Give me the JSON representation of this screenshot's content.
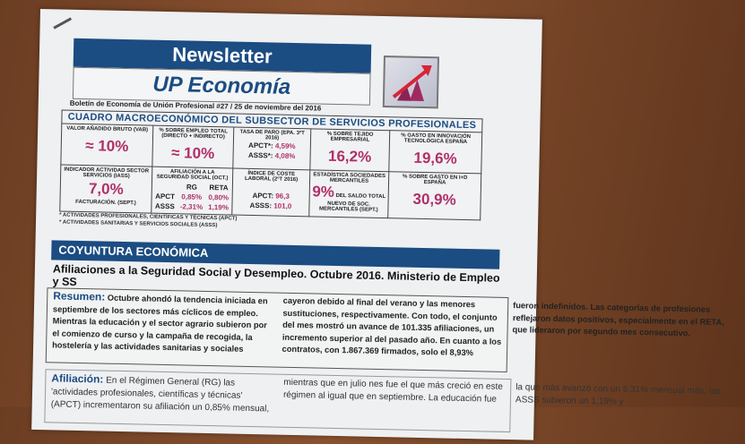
{
  "header": {
    "title": "Newsletter",
    "subtitle": "UP Economía",
    "bulletin": "Boletín de Economía de Unión Profesional #27 / 25 de noviembre del 2016"
  },
  "table": {
    "title": "CUADRO MACROECONÓMICO DEL SUBSECTOR DE SERVICIOS PROFESIONALES",
    "vab": {
      "label": "VALOR AÑADIDO BRUTO (VAB)",
      "value": "≈ 10%"
    },
    "empleo": {
      "label": "% SOBRE EMPLEO TOTAL (DIRECTO + INDIRECTO)",
      "value": "≈ 10%"
    },
    "paro": {
      "label": "TASA DE PARO (EPA. 3ºT 2016)",
      "apct_label": "APCT*:",
      "apct": "4,59%",
      "asss_label": "ASSS*:",
      "asss": "4,08%"
    },
    "tejido": {
      "label": "% SOBRE TEJIDO EMPRESARIAL",
      "value": "16,2%"
    },
    "innov": {
      "label": "% GASTO EN INNOVACIÓN TECNOLÓGICA ESPAÑA",
      "value": "19,6%"
    },
    "iass": {
      "label": "INDICADOR ACTIVIDAD SECTOR SERVICIOS (IASS)",
      "value": "7,0%",
      "note": "FACTURACIÓN. (SEPT.)"
    },
    "afil": {
      "label": "AFILIACIÓN A LA SEGURIDAD SOCIAL (OCT.)",
      "rg": "RG",
      "reta": "RETA",
      "apct": "APCT",
      "apct_rg": "0,85%",
      "apct_reta": "0,80%",
      "asss": "ASSS",
      "asss_rg": "-2,31%",
      "asss_reta": "1,19%"
    },
    "coste": {
      "label": "ÍNDICE DE COSTE LABORAL (2ºT 2016)",
      "apct_label": "APCT:",
      "apct": "96,3",
      "asss_label": "ASSS:",
      "asss": "101,0"
    },
    "socied": {
      "label": "ESTADÍSTICA SOCIEDADES MERCANTILES",
      "value": "9%",
      "note": "DEL SALDO TOTAL NUEVO DE SOC. MERCANTILES (SEPT.)"
    },
    "id": {
      "label": "% SOBRE GASTO EN I+D ESPAÑA",
      "value": "30,9%"
    }
  },
  "footnotes": [
    "* ACTIVIDADES PROFESIONALES, CIENTÍFICAS Y TÉCNICAS (APCT)",
    "* ACTIVIDADES SANITARIAS Y SERVICIOS SOCIALES (ASSS)"
  ],
  "section": {
    "title": "COYUNTURA ECONÓMICA",
    "headline": "Afiliaciones a la Seguridad Social y Desempleo. Octubre 2016. Ministerio de Empleo y SS"
  },
  "resumen": {
    "label": "Resumen:",
    "text": "Octubre ahondó la tendencia iniciada en septiembre de los sectores más cíclicos de empleo. Mientras la educación y el sector agrario subieron por el comienzo de curso y la campaña de recogida, la hostelería y las actividades sanitarias y sociales cayeron debido al final del verano y las menores sustituciones, respectivamente. Con todo, el conjunto del mes mostró un avance de 101.335 afiliaciones, un incremento superior al del pasado año. En cuanto a los contratos, con 1.867.369 firmados, solo el 8,93% fueron indefinidos. Las categorías de profesiones reflejaron datos positivos, especialmente en el RETA, que lideraron por segundo mes consecutivo."
  },
  "afiliacion": {
    "label": "Afiliación:",
    "text": "En el Régimen General (RG) las 'actividades profesionales, científicas y técnicas' (APCT) incrementaron su afiliación un 0,85% mensual, mientras que en julio nes fue el que más creció en este régimen al igual que en septiembre. La educación fue la que más avanzó con un 6,31% mensual más, las ASSS subieron un 1,19% y"
  },
  "colors": {
    "brand_blue": "#1b4c82",
    "value_pink": "#b0306a",
    "underline_red": "#d0314f"
  }
}
